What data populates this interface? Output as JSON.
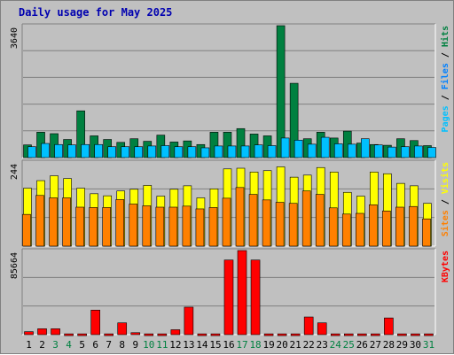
{
  "title": "Daily usage for May 2025",
  "colors": {
    "hits": "#008040",
    "files": "#00c0ff",
    "pages": "#00c0ff",
    "sites": "#ff8000",
    "visits": "#ffff00",
    "kbytes": "#ff0000",
    "weekend_day": "#008040",
    "weekday": "#000000",
    "title": "#0000b0"
  },
  "panels": {
    "top": {
      "max_label": "3640",
      "legend": [
        {
          "text": "Pages",
          "color": "#00c0ff"
        },
        {
          "text": " / ",
          "color": "#000000"
        },
        {
          "text": "Files",
          "color": "#0080ff"
        },
        {
          "text": " / ",
          "color": "#000000"
        },
        {
          "text": "Hits",
          "color": "#008040"
        }
      ]
    },
    "middle": {
      "max_label": "244",
      "legend": [
        {
          "text": "Sites",
          "color": "#ff8000"
        },
        {
          "text": " / ",
          "color": "#000000"
        },
        {
          "text": "Visits",
          "color": "#ffff00"
        }
      ]
    },
    "bottom": {
      "max_label": "85664",
      "legend": [
        {
          "text": "KBytes",
          "color": "#ff0000"
        }
      ]
    }
  },
  "chart_data": {
    "type": "bar",
    "title": "Daily usage for May 2025",
    "categories": [
      "1",
      "2",
      "3",
      "4",
      "5",
      "6",
      "7",
      "8",
      "9",
      "10",
      "11",
      "12",
      "13",
      "14",
      "15",
      "16",
      "17",
      "18",
      "19",
      "20",
      "21",
      "22",
      "23",
      "24",
      "25",
      "26",
      "27",
      "28",
      "29",
      "30",
      "31"
    ],
    "weekend_days": [
      "3",
      "4",
      "10",
      "11",
      "17",
      "18",
      "24",
      "25",
      "31"
    ],
    "panels": [
      {
        "name": "Hits / Files / Pages",
        "ylim": [
          0,
          3640
        ],
        "series": [
          {
            "name": "Hits",
            "values": [
              350,
              700,
              660,
              500,
              1290,
              600,
              500,
              420,
              520,
              450,
              620,
              430,
              460,
              360,
              700,
              700,
              800,
              650,
              600,
              3640,
              2050,
              520,
              700,
              540,
              730,
              400,
              360,
              340,
              520,
              470,
              330
            ]
          },
          {
            "name": "Files",
            "values": [
              300,
              390,
              360,
              350,
              360,
              360,
              300,
              300,
              300,
              320,
              330,
              300,
              300,
              270,
              320,
              320,
              320,
              350,
              330,
              540,
              480,
              370,
              560,
              380,
              370,
              520,
              350,
              290,
              300,
              320,
              280
            ]
          },
          {
            "name": "Pages",
            "values": [
              200,
              250,
              240,
              230,
              260,
              240,
              200,
              200,
              220,
              220,
              230,
              210,
              210,
              180,
              220,
              220,
              220,
              240,
              230,
              400,
              380,
              280,
              450,
              280,
              280,
              420,
              260,
              220,
              230,
              240,
              200
            ]
          }
        ]
      },
      {
        "name": "Visits / Sites",
        "ylim": [
          0,
          244
        ],
        "series": [
          {
            "name": "Visits",
            "values": [
              168,
              190,
              204,
              196,
              168,
              152,
              146,
              160,
              165,
              176,
              145,
              165,
              175,
              140,
              166,
              224,
              226,
              215,
              219,
              230,
              200,
              206,
              228,
              215,
              156,
              145,
              215,
              210,
              182,
              175,
              124
            ]
          },
          {
            "name": "Sites",
            "values": [
              92,
              147,
              140,
              140,
              113,
              112,
              112,
              135,
              122,
              117,
              113,
              113,
              116,
              108,
              112,
              139,
              170,
              150,
              134,
              127,
              124,
              160,
              150,
              111,
              93,
              95,
              120,
              102,
              113,
              115,
              79
            ]
          }
        ]
      },
      {
        "name": "KBytes",
        "ylim": [
          0,
          85664
        ],
        "series": [
          {
            "name": "KBytes",
            "values": [
              3000,
              6000,
              6000,
              800,
              800,
              25000,
              800,
              12000,
              2000,
              800,
              800,
              5000,
              28000,
              800,
              800,
              76000,
              85664,
              76000,
              800,
              800,
              800,
              18000,
              12000,
              800,
              800,
              800,
              800,
              17000,
              800,
              800,
              800
            ]
          }
        ]
      }
    ]
  }
}
